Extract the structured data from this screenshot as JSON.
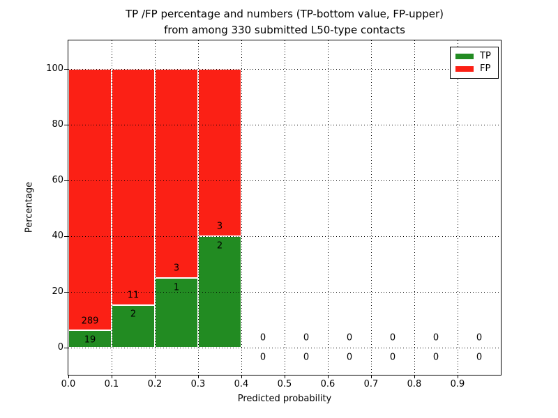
{
  "title": {
    "line1": "TP /FP percentage and numbers (TP-bottom value, FP-upper)",
    "line2": "from among 330 submitted L50-type contacts"
  },
  "chart_data": {
    "type": "bar",
    "stacked": true,
    "title": "TP /FP percentage and numbers (TP-bottom value, FP-upper)\nfrom among 330 submitted L50-type contacts",
    "xlabel": "Predicted probability",
    "ylabel": "Percentage",
    "total_contacts": 330,
    "xlim": [
      0.0,
      1.0
    ],
    "ylim": [
      -9.75,
      110.25
    ],
    "xticks": [
      0.0,
      0.1,
      0.2,
      0.3,
      0.4,
      0.5,
      0.6,
      0.7,
      0.8,
      0.9
    ],
    "xtick_labels": [
      "0.0",
      "0.1",
      "0.2",
      "0.3",
      "0.4",
      "0.5",
      "0.6",
      "0.7",
      "0.8",
      "0.9"
    ],
    "yticks": [
      0,
      20,
      40,
      60,
      80,
      100
    ],
    "ytick_labels": [
      "0",
      "20",
      "40",
      "60",
      "80",
      "100"
    ],
    "grid": true,
    "grid_style": "dotted",
    "legend": {
      "position": "upper right",
      "entries": [
        {
          "label": "TP",
          "color": "#228b22"
        },
        {
          "label": "FP",
          "color": "#fb2015"
        }
      ]
    },
    "colors": {
      "tp": "#228b22",
      "fp": "#fb2015",
      "bar_edge": "#ffffff",
      "grid": "#000000",
      "text": "#000000"
    },
    "bins": [
      {
        "x0": 0.0,
        "x1": 0.1,
        "tp": 19,
        "fp": 289,
        "tp_pct": 6.17,
        "fp_pct": 93.83
      },
      {
        "x0": 0.1,
        "x1": 0.2,
        "tp": 2,
        "fp": 11,
        "tp_pct": 15.38,
        "fp_pct": 84.62
      },
      {
        "x0": 0.2,
        "x1": 0.3,
        "tp": 1,
        "fp": 3,
        "tp_pct": 25.0,
        "fp_pct": 75.0
      },
      {
        "x0": 0.3,
        "x1": 0.4,
        "tp": 2,
        "fp": 3,
        "tp_pct": 40.0,
        "fp_pct": 60.0
      },
      {
        "x0": 0.4,
        "x1": 0.5,
        "tp": 0,
        "fp": 0,
        "tp_pct": 0,
        "fp_pct": 0
      },
      {
        "x0": 0.5,
        "x1": 0.6,
        "tp": 0,
        "fp": 0,
        "tp_pct": 0,
        "fp_pct": 0
      },
      {
        "x0": 0.6,
        "x1": 0.7,
        "tp": 0,
        "fp": 0,
        "tp_pct": 0,
        "fp_pct": 0
      },
      {
        "x0": 0.7,
        "x1": 0.8,
        "tp": 0,
        "fp": 0,
        "tp_pct": 0,
        "fp_pct": 0
      },
      {
        "x0": 0.8,
        "x1": 0.9,
        "tp": 0,
        "fp": 0,
        "tp_pct": 0,
        "fp_pct": 0
      },
      {
        "x0": 0.9,
        "x1": 1.0,
        "tp": 0,
        "fp": 0,
        "tp_pct": 0,
        "fp_pct": 0
      }
    ]
  }
}
